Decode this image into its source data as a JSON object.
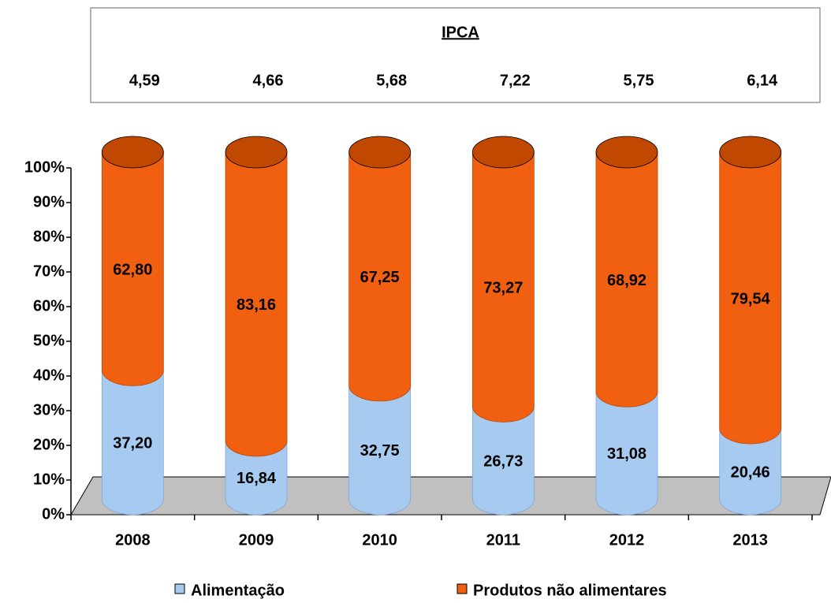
{
  "chart_data": {
    "type": "bar3d_stacked_percent",
    "ipca": {
      "title": "IPCA",
      "values": [
        "4,59",
        "4,66",
        "5,68",
        "7,22",
        "5,75",
        "6,14"
      ]
    },
    "categories": [
      "2008",
      "2009",
      "2010",
      "2011",
      "2012",
      "2013"
    ],
    "series": [
      {
        "name": "Alimentação",
        "color": "#a6caf0",
        "values": [
          37.2,
          16.84,
          32.75,
          26.73,
          31.08,
          20.46
        ],
        "value_labels": [
          "37,20",
          "16,84",
          "32,75",
          "26,73",
          "31,08",
          "20,46"
        ]
      },
      {
        "name": "Produtos não alimentares",
        "color": "#f06010",
        "values": [
          62.8,
          83.16,
          67.25,
          73.27,
          68.92,
          79.54
        ],
        "value_labels": [
          "62,80",
          "83,16",
          "67,25",
          "73,27",
          "68,92",
          "79,54"
        ]
      }
    ],
    "ylim": [
      0,
      100
    ],
    "yticks": [
      {
        "value": 0,
        "label": "0%"
      },
      {
        "value": 10,
        "label": "10%"
      },
      {
        "value": 20,
        "label": "20%"
      },
      {
        "value": 30,
        "label": "30%"
      },
      {
        "value": 40,
        "label": "40%"
      },
      {
        "value": 50,
        "label": "50%"
      },
      {
        "value": 60,
        "label": "60%"
      },
      {
        "value": 70,
        "label": "70%"
      },
      {
        "value": 80,
        "label": "80%"
      },
      {
        "value": 90,
        "label": "90%"
      },
      {
        "value": 100,
        "label": "100%"
      }
    ]
  }
}
